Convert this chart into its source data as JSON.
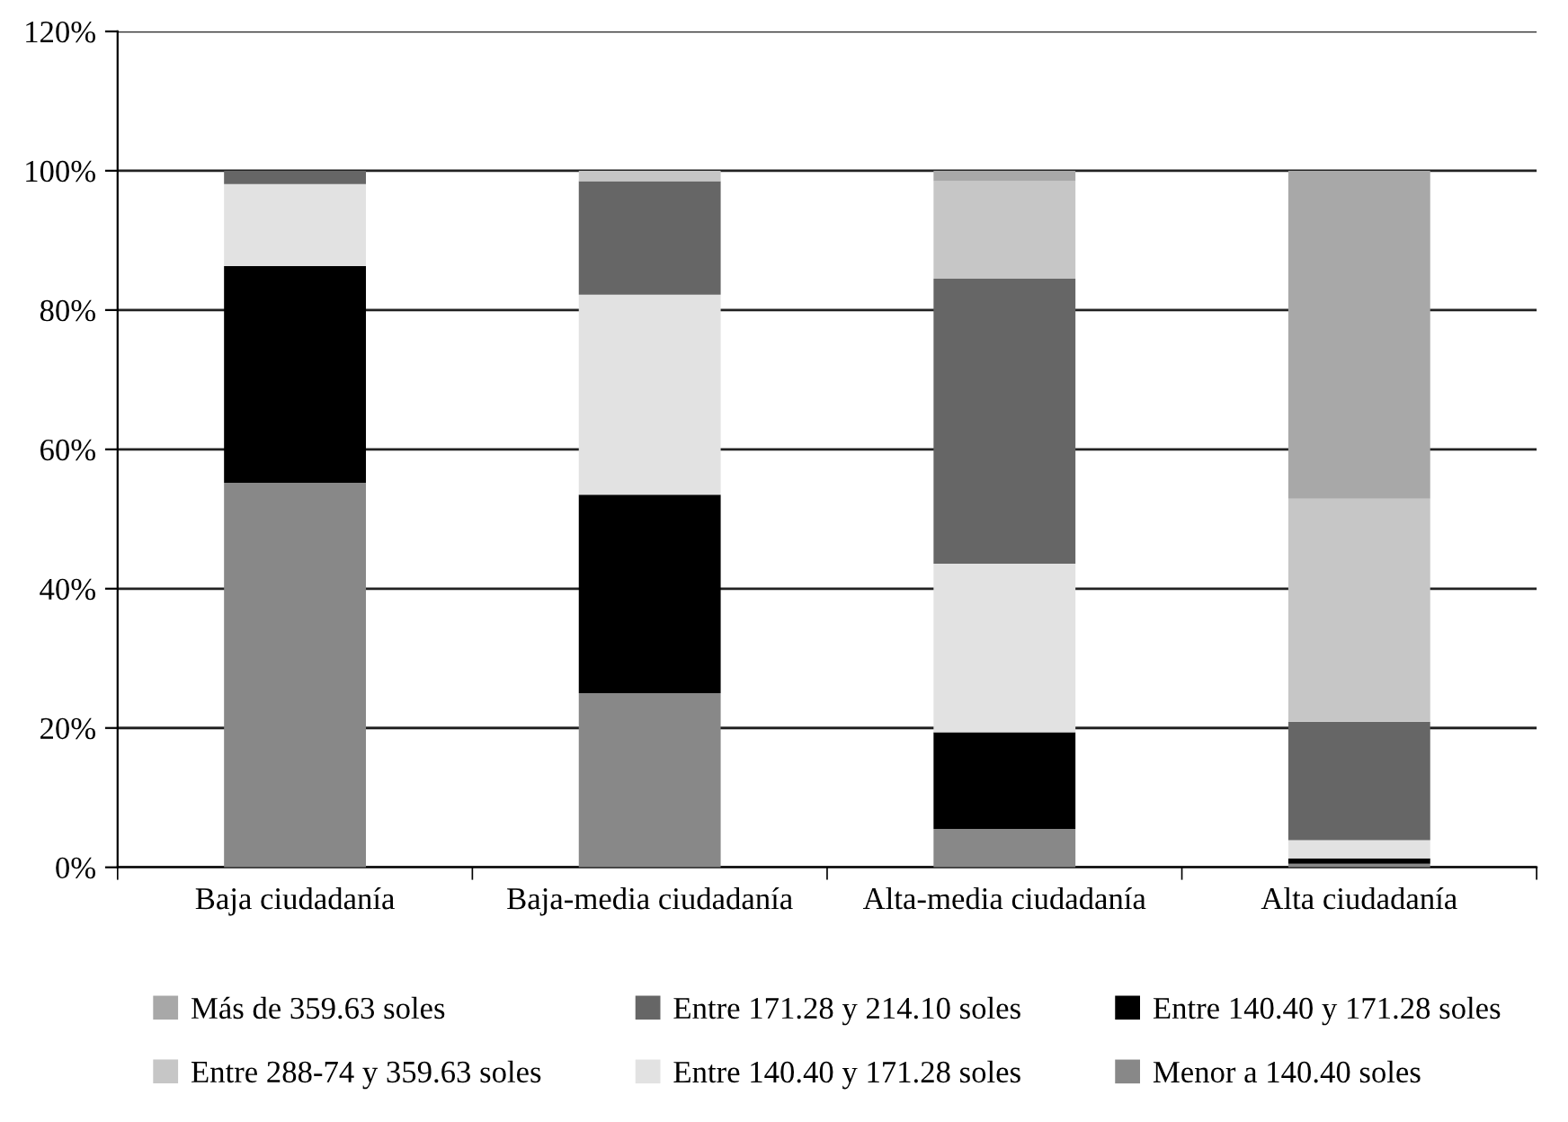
{
  "chart_data": {
    "type": "bar",
    "stacked": true,
    "categories": [
      "Baja ciudadanía",
      "Baja-media ciudadanía",
      "Alta-media ciudadanía",
      "Alta ciudadanía"
    ],
    "series": [
      {
        "name": "Menor a 140.40 soles",
        "color": "#888888",
        "values": [
          55.2,
          25.0,
          5.5,
          0.5
        ]
      },
      {
        "name": "Entre 140.40 y 171.28 soles",
        "color": "#000000",
        "values": [
          31.1,
          28.5,
          13.9,
          0.8
        ]
      },
      {
        "name": "Entre 140.40 y 171.28 soles",
        "color": "#e2e2e2",
        "values": [
          11.8,
          28.7,
          24.2,
          2.6
        ]
      },
      {
        "name": "Entre 171.28 y 214.10 soles",
        "color": "#666666",
        "values": [
          1.9,
          16.3,
          40.9,
          17.0
        ]
      },
      {
        "name": "Entre 288-74 y 359.63 soles",
        "color": "#c6c6c6",
        "values": [
          0,
          1.5,
          14.0,
          32.0
        ]
      },
      {
        "name": "Más de 359.63 soles",
        "color": "#a8a8a8",
        "values": [
          0,
          0,
          1.5,
          47.1
        ]
      }
    ],
    "ylim": [
      0,
      120
    ],
    "yticks": [
      {
        "value": 0,
        "label": "0%"
      },
      {
        "value": 20,
        "label": "20%"
      },
      {
        "value": 40,
        "label": "40%"
      },
      {
        "value": 60,
        "label": "60%"
      },
      {
        "value": 80,
        "label": "80%"
      },
      {
        "value": 100,
        "label": "100%"
      },
      {
        "value": 120,
        "label": "120%"
      }
    ],
    "grid": "y",
    "legend": "bottom"
  }
}
